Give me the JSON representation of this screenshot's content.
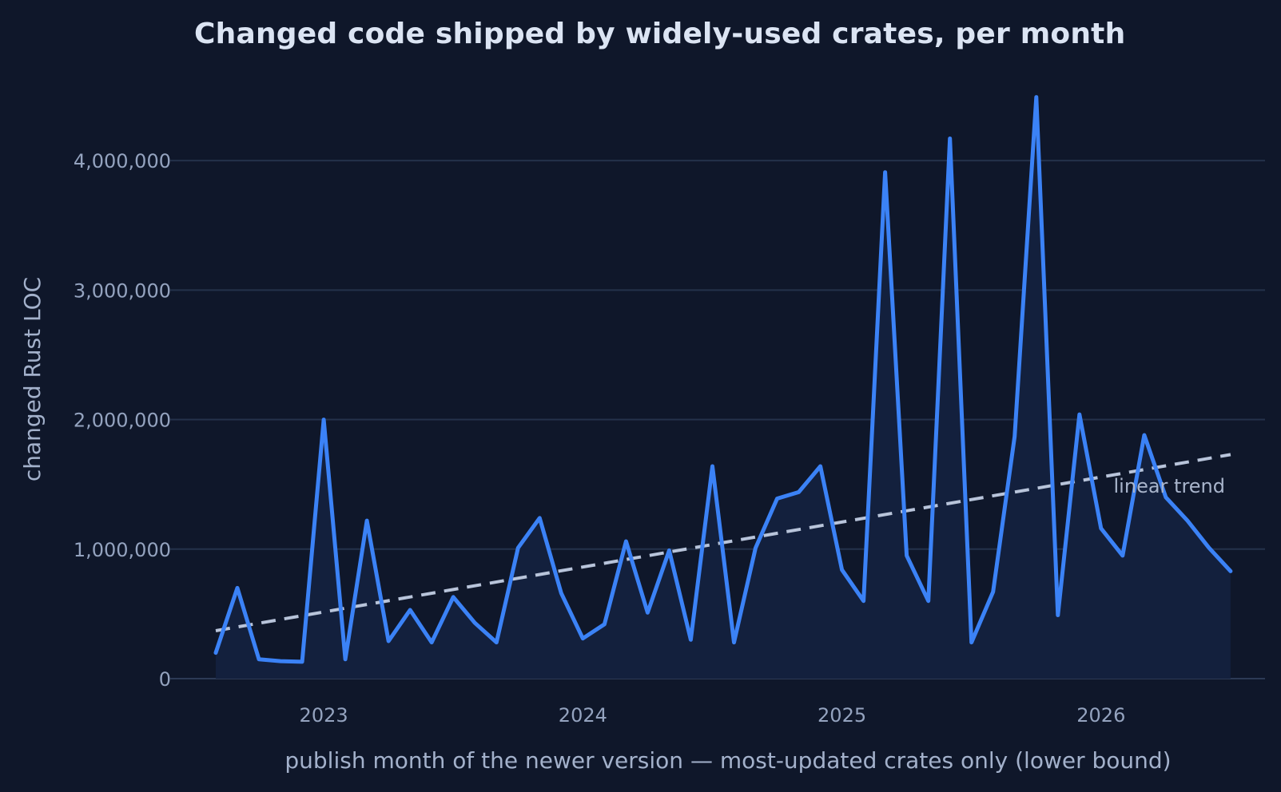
{
  "chart_data": {
    "type": "line",
    "title": "Changed code shipped by widely-used crates, per month",
    "xlabel": "publish month of the newer version — most-updated crates only (lower bound)",
    "ylabel": "changed Rust LOC",
    "ylim": [
      0,
      4500000
    ],
    "y_ticks": [
      0,
      1000000,
      2000000,
      3000000,
      4000000
    ],
    "y_tick_labels": [
      "0",
      "1,000,000",
      "2,000,000",
      "3,000,000",
      "4,000,000"
    ],
    "x_ticks": [
      "2023-01",
      "2024-01",
      "2025-01",
      "2026-01"
    ],
    "x_tick_labels": [
      "2023",
      "2024",
      "2025",
      "2026"
    ],
    "grid": "horizontal",
    "series": [
      {
        "x": [
          "2022-08",
          "2022-09",
          "2022-10",
          "2022-11",
          "2022-12",
          "2023-01",
          "2023-02",
          "2023-03",
          "2023-04",
          "2023-05",
          "2023-06",
          "2023-07",
          "2023-08",
          "2023-09",
          "2023-10",
          "2023-11",
          "2023-12",
          "2024-01",
          "2024-02",
          "2024-03",
          "2024-04",
          "2024-05",
          "2024-06",
          "2024-07",
          "2024-08",
          "2024-09",
          "2024-10",
          "2024-11",
          "2024-12",
          "2025-01",
          "2025-02",
          "2025-03",
          "2025-04",
          "2025-05",
          "2025-06",
          "2025-07",
          "2025-08",
          "2025-09",
          "2025-10",
          "2025-11",
          "2025-12",
          "2026-01",
          "2026-02",
          "2026-03",
          "2026-04",
          "2026-05",
          "2026-06",
          "2026-07"
        ],
        "values": [
          200000,
          700000,
          150000,
          135000,
          130000,
          2000000,
          150000,
          1220000,
          290000,
          530000,
          280000,
          630000,
          430000,
          280000,
          1010000,
          1240000,
          660000,
          310000,
          420000,
          1060000,
          510000,
          990000,
          300000,
          1640000,
          280000,
          1010000,
          1390000,
          1440000,
          1640000,
          840000,
          600000,
          3910000,
          950000,
          600000,
          4170000,
          280000,
          670000,
          1870000,
          4490000,
          490000,
          2040000,
          1160000,
          950000,
          1880000,
          1400000,
          1220000,
          1010000,
          830000
        ]
      }
    ],
    "trend": {
      "label": "linear trend",
      "start": {
        "x": "2022-08",
        "y": 370000
      },
      "end": {
        "x": "2026-07",
        "y": 1730000
      }
    }
  },
  "colors": {
    "background": "#0f172a",
    "line": "#3b82f6",
    "area": "#13203d",
    "trend": "#b8c4da",
    "grid": "#24324b"
  }
}
